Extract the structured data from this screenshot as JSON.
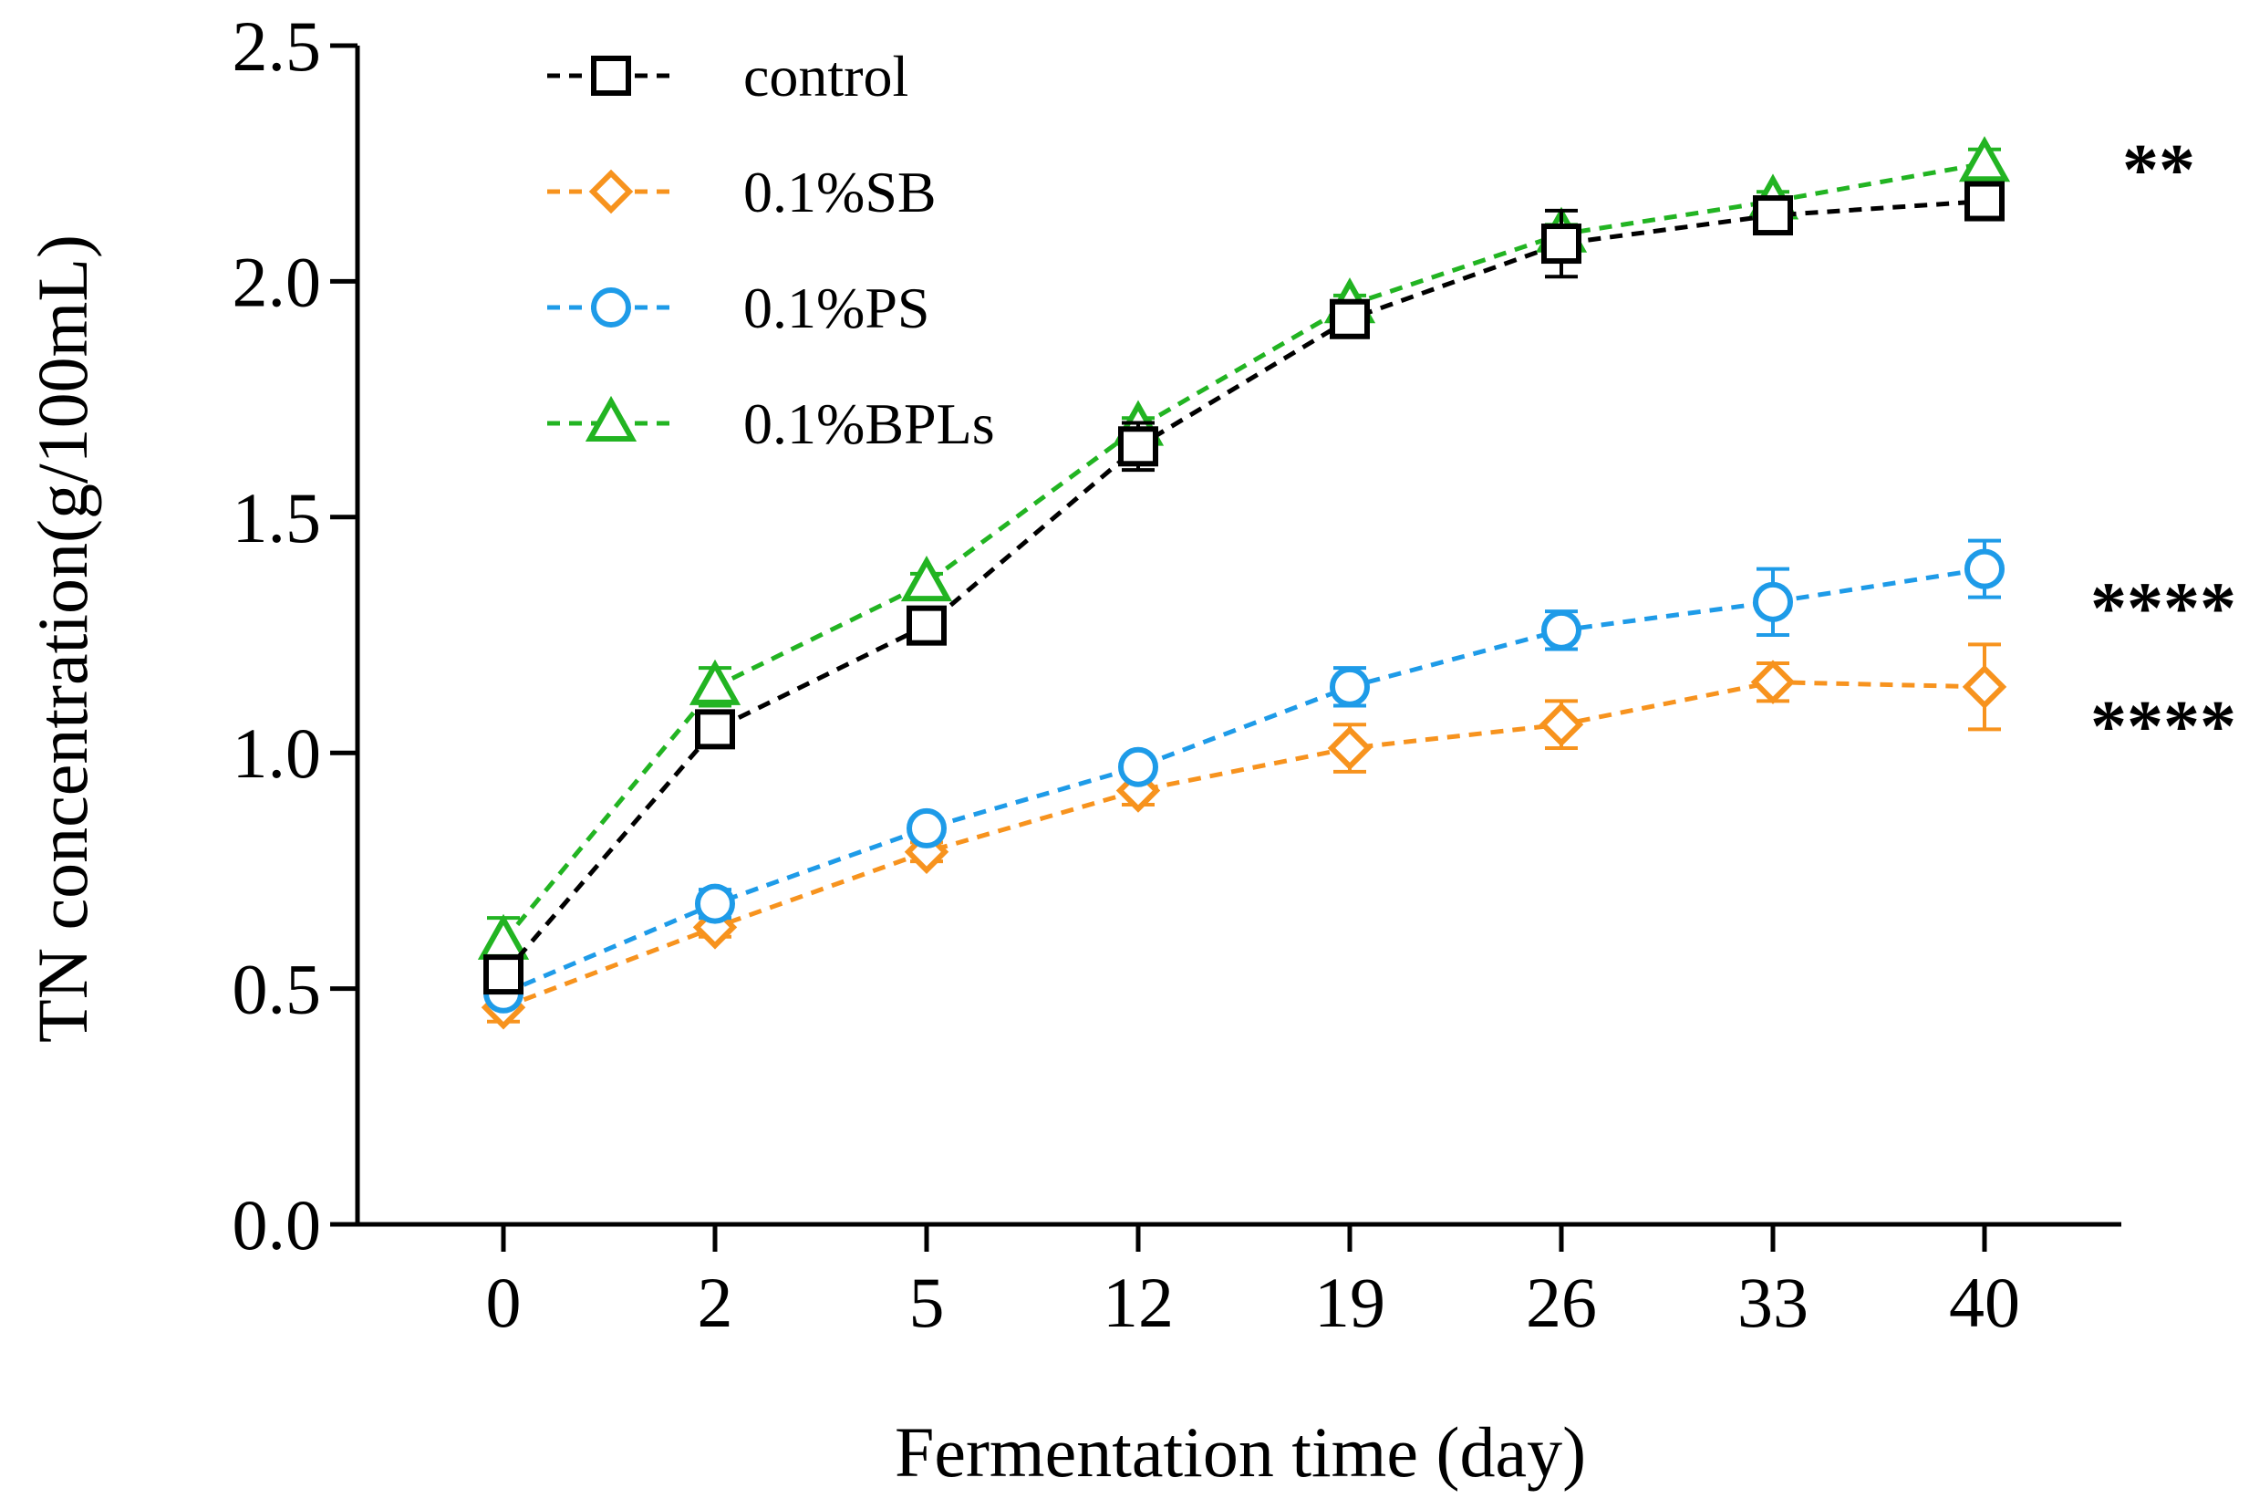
{
  "chart_data": {
    "type": "line",
    "xlabel": "Fermentation time (day)",
    "ylabel": "TN concentration(g/100mL)",
    "categories": [
      "0",
      "2",
      "5",
      "12",
      "19",
      "26",
      "33",
      "40"
    ],
    "ylim": [
      0.0,
      2.5
    ],
    "yticks": [
      "0.0",
      "0.5",
      "1.0",
      "1.5",
      "2.0",
      "2.5"
    ],
    "grid": false,
    "legend_position": "top-left",
    "series": [
      {
        "name": "control",
        "color": "#000000",
        "marker": "square",
        "values": [
          0.53,
          1.05,
          1.27,
          1.65,
          1.92,
          2.08,
          2.14,
          2.17
        ],
        "errors": [
          0.02,
          0.03,
          0.02,
          0.05,
          0.02,
          0.07,
          0.02,
          0.03
        ]
      },
      {
        "name": "0.1%SB",
        "color": "#F7931E",
        "marker": "diamond",
        "values": [
          0.46,
          0.63,
          0.79,
          0.92,
          1.01,
          1.06,
          1.15,
          1.14
        ],
        "errors": [
          0.03,
          0.02,
          0.02,
          0.03,
          0.05,
          0.05,
          0.04,
          0.09
        ]
      },
      {
        "name": "0.1%PS",
        "color": "#1E9BE8",
        "marker": "circle",
        "values": [
          0.49,
          0.68,
          0.84,
          0.97,
          1.14,
          1.26,
          1.32,
          1.39
        ],
        "errors": [
          0.02,
          0.03,
          0.02,
          0.02,
          0.04,
          0.04,
          0.07,
          0.06
        ]
      },
      {
        "name": "0.1%BPLs",
        "color": "#22B422",
        "marker": "triangle",
        "values": [
          0.6,
          1.14,
          1.36,
          1.69,
          1.95,
          2.1,
          2.17,
          2.25
        ],
        "errors": [
          0.05,
          0.04,
          0.02,
          0.02,
          0.02,
          0.02,
          0.02,
          0.03
        ]
      }
    ],
    "annotations": [
      {
        "text": "**",
        "series": "0.1%BPLs"
      },
      {
        "text": "****",
        "series": "0.1%PS"
      },
      {
        "text": "****",
        "series": "0.1%SB"
      }
    ]
  }
}
